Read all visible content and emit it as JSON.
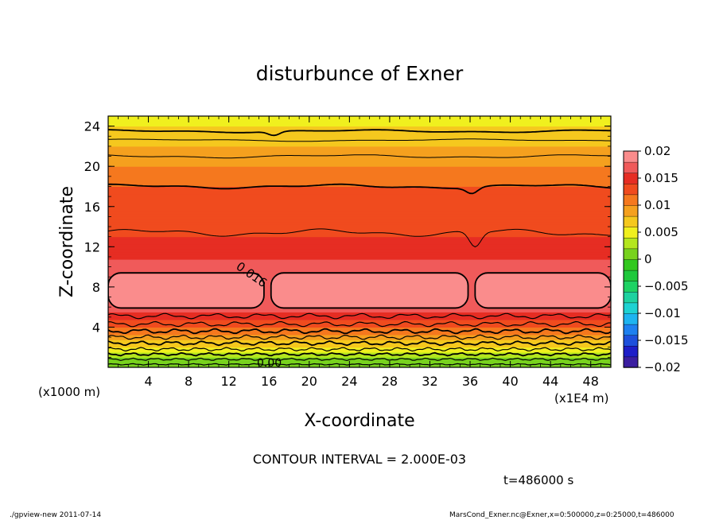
{
  "chart_data": {
    "type": "heatmap",
    "title": "disturbunce of Exner",
    "xlabel": "X-coordinate",
    "ylabel": "Z-coordinate",
    "x_unit_left": "(x1000 m)",
    "x_unit_right": "(x1E4 m)",
    "xlim": [
      0,
      50
    ],
    "ylim": [
      0,
      25
    ],
    "x_ticks": [
      4,
      8,
      12,
      16,
      20,
      24,
      28,
      32,
      36,
      40,
      44,
      48
    ],
    "x_tick_labels": [
      "4",
      "8",
      "12",
      "16",
      "20",
      "24",
      "28",
      "32",
      "36",
      "40",
      "44",
      "48"
    ],
    "y_ticks": [
      4,
      8,
      12,
      16,
      20,
      24
    ],
    "y_tick_labels": [
      "4",
      "8",
      "12",
      "16",
      "20",
      "24"
    ],
    "colorbar": {
      "levels": [
        -0.02,
        -0.018,
        -0.016,
        -0.014,
        -0.012,
        -0.01,
        -0.008,
        -0.006,
        -0.004,
        -0.002,
        0,
        0.002,
        0.004,
        0.006,
        0.008,
        0.01,
        0.012,
        0.014,
        0.016,
        0.018,
        0.02
      ],
      "tick_values": [
        0.02,
        0.015,
        0.01,
        0.005,
        0,
        -0.005,
        -0.01,
        -0.015,
        -0.02
      ],
      "tick_labels": [
        "0.02",
        "0.015",
        "0.01",
        "0.005",
        "0",
        "−0.005",
        "−0.01",
        "−0.015",
        "−0.02"
      ],
      "colors": [
        "#7a1fa0",
        "#3b1ea0",
        "#1e1ec8",
        "#1e50dc",
        "#1e80f0",
        "#1eb4f0",
        "#1ed2d2",
        "#1ed2a0",
        "#1ed264",
        "#1ec83c",
        "#32c81e",
        "#78d21e",
        "#b4e61e",
        "#f0f01e",
        "#f5c81e",
        "#f5a01e",
        "#f5781e",
        "#f04b1e",
        "#e62d23",
        "#f05a5a",
        "#fa8c8c"
      ]
    },
    "field_description_levels": {
      "surface_z0": 0.0,
      "z_2km": 0.006,
      "z_4km": 0.012,
      "z_6_to_10km_core": 0.017,
      "z_13km": 0.014,
      "z_18km": 0.012,
      "z_22km": 0.008,
      "z_25km": 0.005
    },
    "contour_labels": [
      "0.016",
      "0.00"
    ],
    "annotations": [
      "CONTOUR INTERVAL = 2.000E-03",
      "t=486000 s"
    ]
  },
  "footer": {
    "left": "./gpview-new   2011-07-14",
    "right": "MarsCond_Exner.nc@Exner,x=0:500000,z=0:25000,t=486000"
  }
}
